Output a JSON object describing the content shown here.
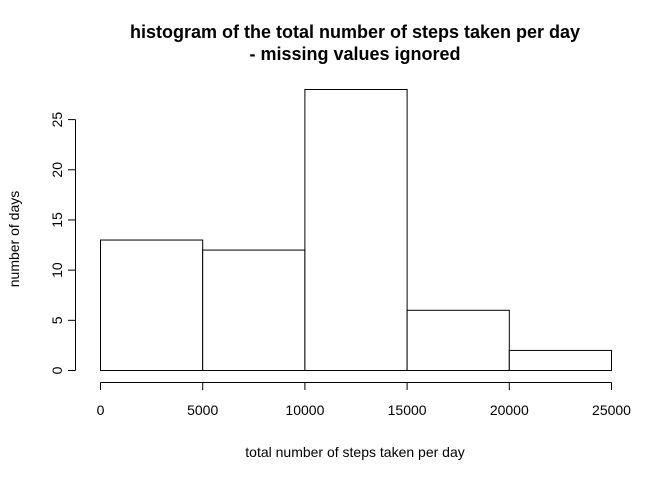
{
  "chart_data": {
    "type": "bar",
    "title": "histogram of the total number of steps taken per day",
    "subtitle": "- missing values ignored",
    "xlabel": "total number of steps taken per day",
    "ylabel": "number of days",
    "bins": [
      {
        "from": 0,
        "to": 5000,
        "count": 13
      },
      {
        "from": 5000,
        "to": 10000,
        "count": 12
      },
      {
        "from": 10000,
        "to": 15000,
        "count": 28
      },
      {
        "from": 15000,
        "to": 20000,
        "count": 6
      },
      {
        "from": 20000,
        "to": 25000,
        "count": 2
      }
    ],
    "xlim": [
      0,
      25000
    ],
    "ylim": [
      0,
      28
    ],
    "xticks": [
      0,
      5000,
      10000,
      15000,
      20000,
      25000
    ],
    "yticks": [
      0,
      5,
      10,
      15,
      20,
      25
    ],
    "bar_color": "#ffffff",
    "edge_color": "#000000",
    "grid": false,
    "legend": "none"
  }
}
